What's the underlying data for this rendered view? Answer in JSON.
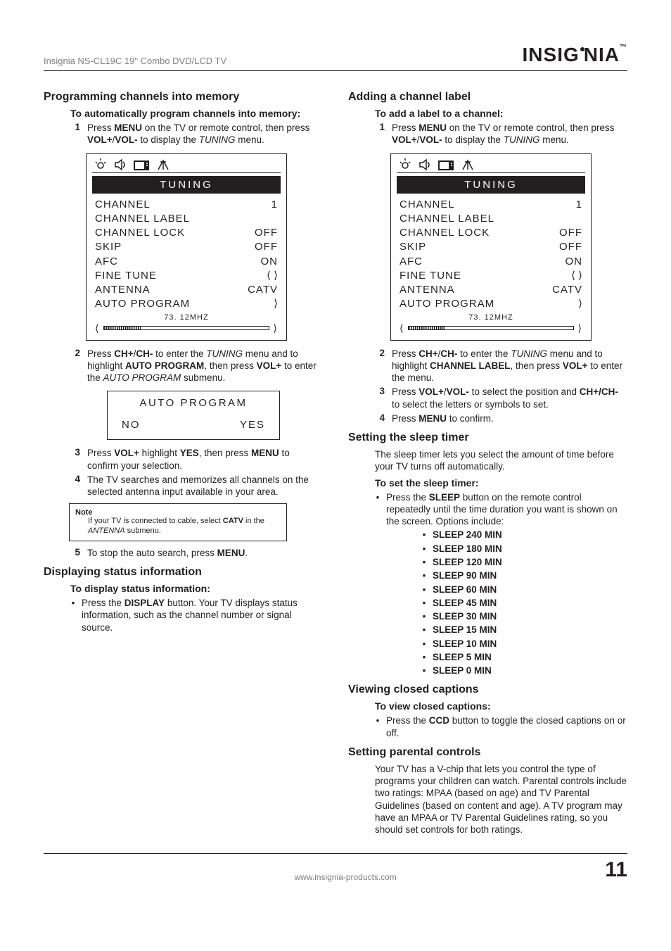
{
  "header": {
    "product": "Insignia NS-CL19C 19\" Combo DVD/LCD TV",
    "brand_left": "INSI",
    "brand_right": "NIA",
    "g1": "G",
    "tm": "™"
  },
  "left": {
    "sec1_title": "Programming channels into memory",
    "sec1_sub": "To automatically program channels into memory:",
    "step1_pre": "Press ",
    "menu_lbl": "MENU",
    "step1_mid": " on the TV or remote control, then press ",
    "vol_lbl": "VOL+",
    "slash": "/",
    "volm_lbl": "VOL-",
    "step1_end": "  to display the ",
    "tuning_i": "TUNING",
    "menu_word": " menu.",
    "step2_pre": "Press ",
    "ch_lbl": "CH+",
    "chm_lbl": "CH-",
    "step2_mid1": " to enter the ",
    "step2_mid2": " menu and to highlight ",
    "autoprog_lbl": "AUTO PROGRAM",
    "step2_mid3": ", then press ",
    "step2_mid4": " to enter the ",
    "autoprog_i": "AUTO PROGRAM",
    "step2_end": " submenu.",
    "step3_pre": "Press ",
    "step3_mid1": " highlight ",
    "yes_lbl": "YES",
    "step3_mid2": ", then press ",
    "step3_end": " to confirm your selection.",
    "step4": "The TV searches and memorizes all channels on the selected antenna input available in your area.",
    "note_t": "Note",
    "note_b_pre": "If your TV is connected to cable, select ",
    "catv_lbl": "CATV",
    "note_b_mid": " in the ",
    "antenna_i": "ANTENNA",
    "note_b_end": " submenu.",
    "step5_pre": "To stop the auto search, press ",
    "step5_end": ".",
    "sec2_title": "Displaying status information",
    "sec2_sub": "To display status information:",
    "sec2_b_pre": "Press the ",
    "display_lbl": "DISPLAY",
    "sec2_b_end": " button. Your TV displays status information, such as the channel number or signal source."
  },
  "right": {
    "sec1_title": "Adding a channel label",
    "sec1_sub": "To add a label to a channel:",
    "step1_pre": "Press ",
    "step1_mid": " on the TV or remote control, then press ",
    "step1_end": "  to display the ",
    "step2_pre": "Press ",
    "step2_mid1": " to enter the ",
    "step2_mid2": " menu and to highlight ",
    "chlabel_lbl": "CHANNEL LABEL",
    "step2_mid3": ", then press ",
    "step2_end": " to enter the menu.",
    "step3_pre": "Press ",
    "step3_mid1": " to select the position and ",
    "chpm_lbl": "CH+/CH-",
    "step3_end": " to select the letters or symbols to set.",
    "step4_pre": "Press ",
    "step4_end": " to confirm.",
    "sec2_title": "Setting the sleep timer",
    "sec2_intro": "The sleep timer lets you select the amount of time before your TV turns off automatically.",
    "sec2_sub": "To set the sleep timer:",
    "sec2_b_pre": "Press the ",
    "sleep_lbl": "SLEEP",
    "sec2_b_end": " button on the remote control repeatedly until the time duration you want is shown on the screen. Options include:",
    "sleep_items": [
      "SLEEP 240 MIN",
      "SLEEP 180 MIN",
      "SLEEP 120 MIN",
      "SLEEP 90 MIN",
      "SLEEP 60 MIN",
      "SLEEP 45 MIN",
      "SLEEP 30 MIN",
      "SLEEP 15 MIN",
      "SLEEP 10 MIN",
      "SLEEP 5 MIN",
      "SLEEP 0 MIN"
    ],
    "sec3_title": "Viewing closed captions",
    "sec3_sub": "To view closed captions:",
    "sec3_b_pre": "Press the ",
    "ccd_lbl": "CCD",
    "sec3_b_end": " button to toggle the closed captions on or off.",
    "sec4_title": "Setting parental controls",
    "sec4_body": "Your TV has a V-chip that lets you control the type of programs your children can watch. Parental controls include two ratings: MPAA (based on age) and TV Parental Guidelines (based on content and age). A TV program may have an MPAA or TV Parental Guidelines rating, so you should set controls for both ratings."
  },
  "osd": {
    "title": "TUNING",
    "rows1": [
      {
        "l": "CHANNEL",
        "r": "1"
      },
      {
        "l": "CHANNEL LABEL",
        "r": ""
      },
      {
        "l": "CHANNEL LOCK",
        "r": "OFF"
      },
      {
        "l": "SKIP",
        "r": "OFF"
      },
      {
        "l": "AFC",
        "r": "ON"
      },
      {
        "l": "FINE TUNE",
        "r": "⟨ ⟩"
      },
      {
        "l": "ANTENNA",
        "r": "CATV"
      },
      {
        "l": "AUTO PROGRAM",
        "r": "⟩"
      }
    ],
    "freq": "73. 12MHZ",
    "fill1": 22,
    "auto_title": "AUTO PROGRAM",
    "no": "NO",
    "yes": "YES",
    "rows2": [
      {
        "l": "CHANNEL",
        "r": "1"
      },
      {
        "l": "CHANNEL LABEL",
        "r": ""
      },
      {
        "l": "CHANNEL LOCK",
        "r": "OFF"
      },
      {
        "l": "SKIP",
        "r": "OFF"
      },
      {
        "l": "AFC",
        "r": "ON"
      },
      {
        "l": "FINE TUNE",
        "r": "⟨ ⟩"
      },
      {
        "l": "ANTENNA",
        "r": "CATV"
      },
      {
        "l": "AUTO PROGRAM",
        "r": "⟩"
      }
    ],
    "fill2": 22
  },
  "footer": {
    "url": "www.insignia-products.com",
    "page": "11"
  },
  "nums": {
    "n1": "1",
    "n2": "2",
    "n3": "3",
    "n4": "4",
    "n5": "5"
  },
  "bullet": "•"
}
